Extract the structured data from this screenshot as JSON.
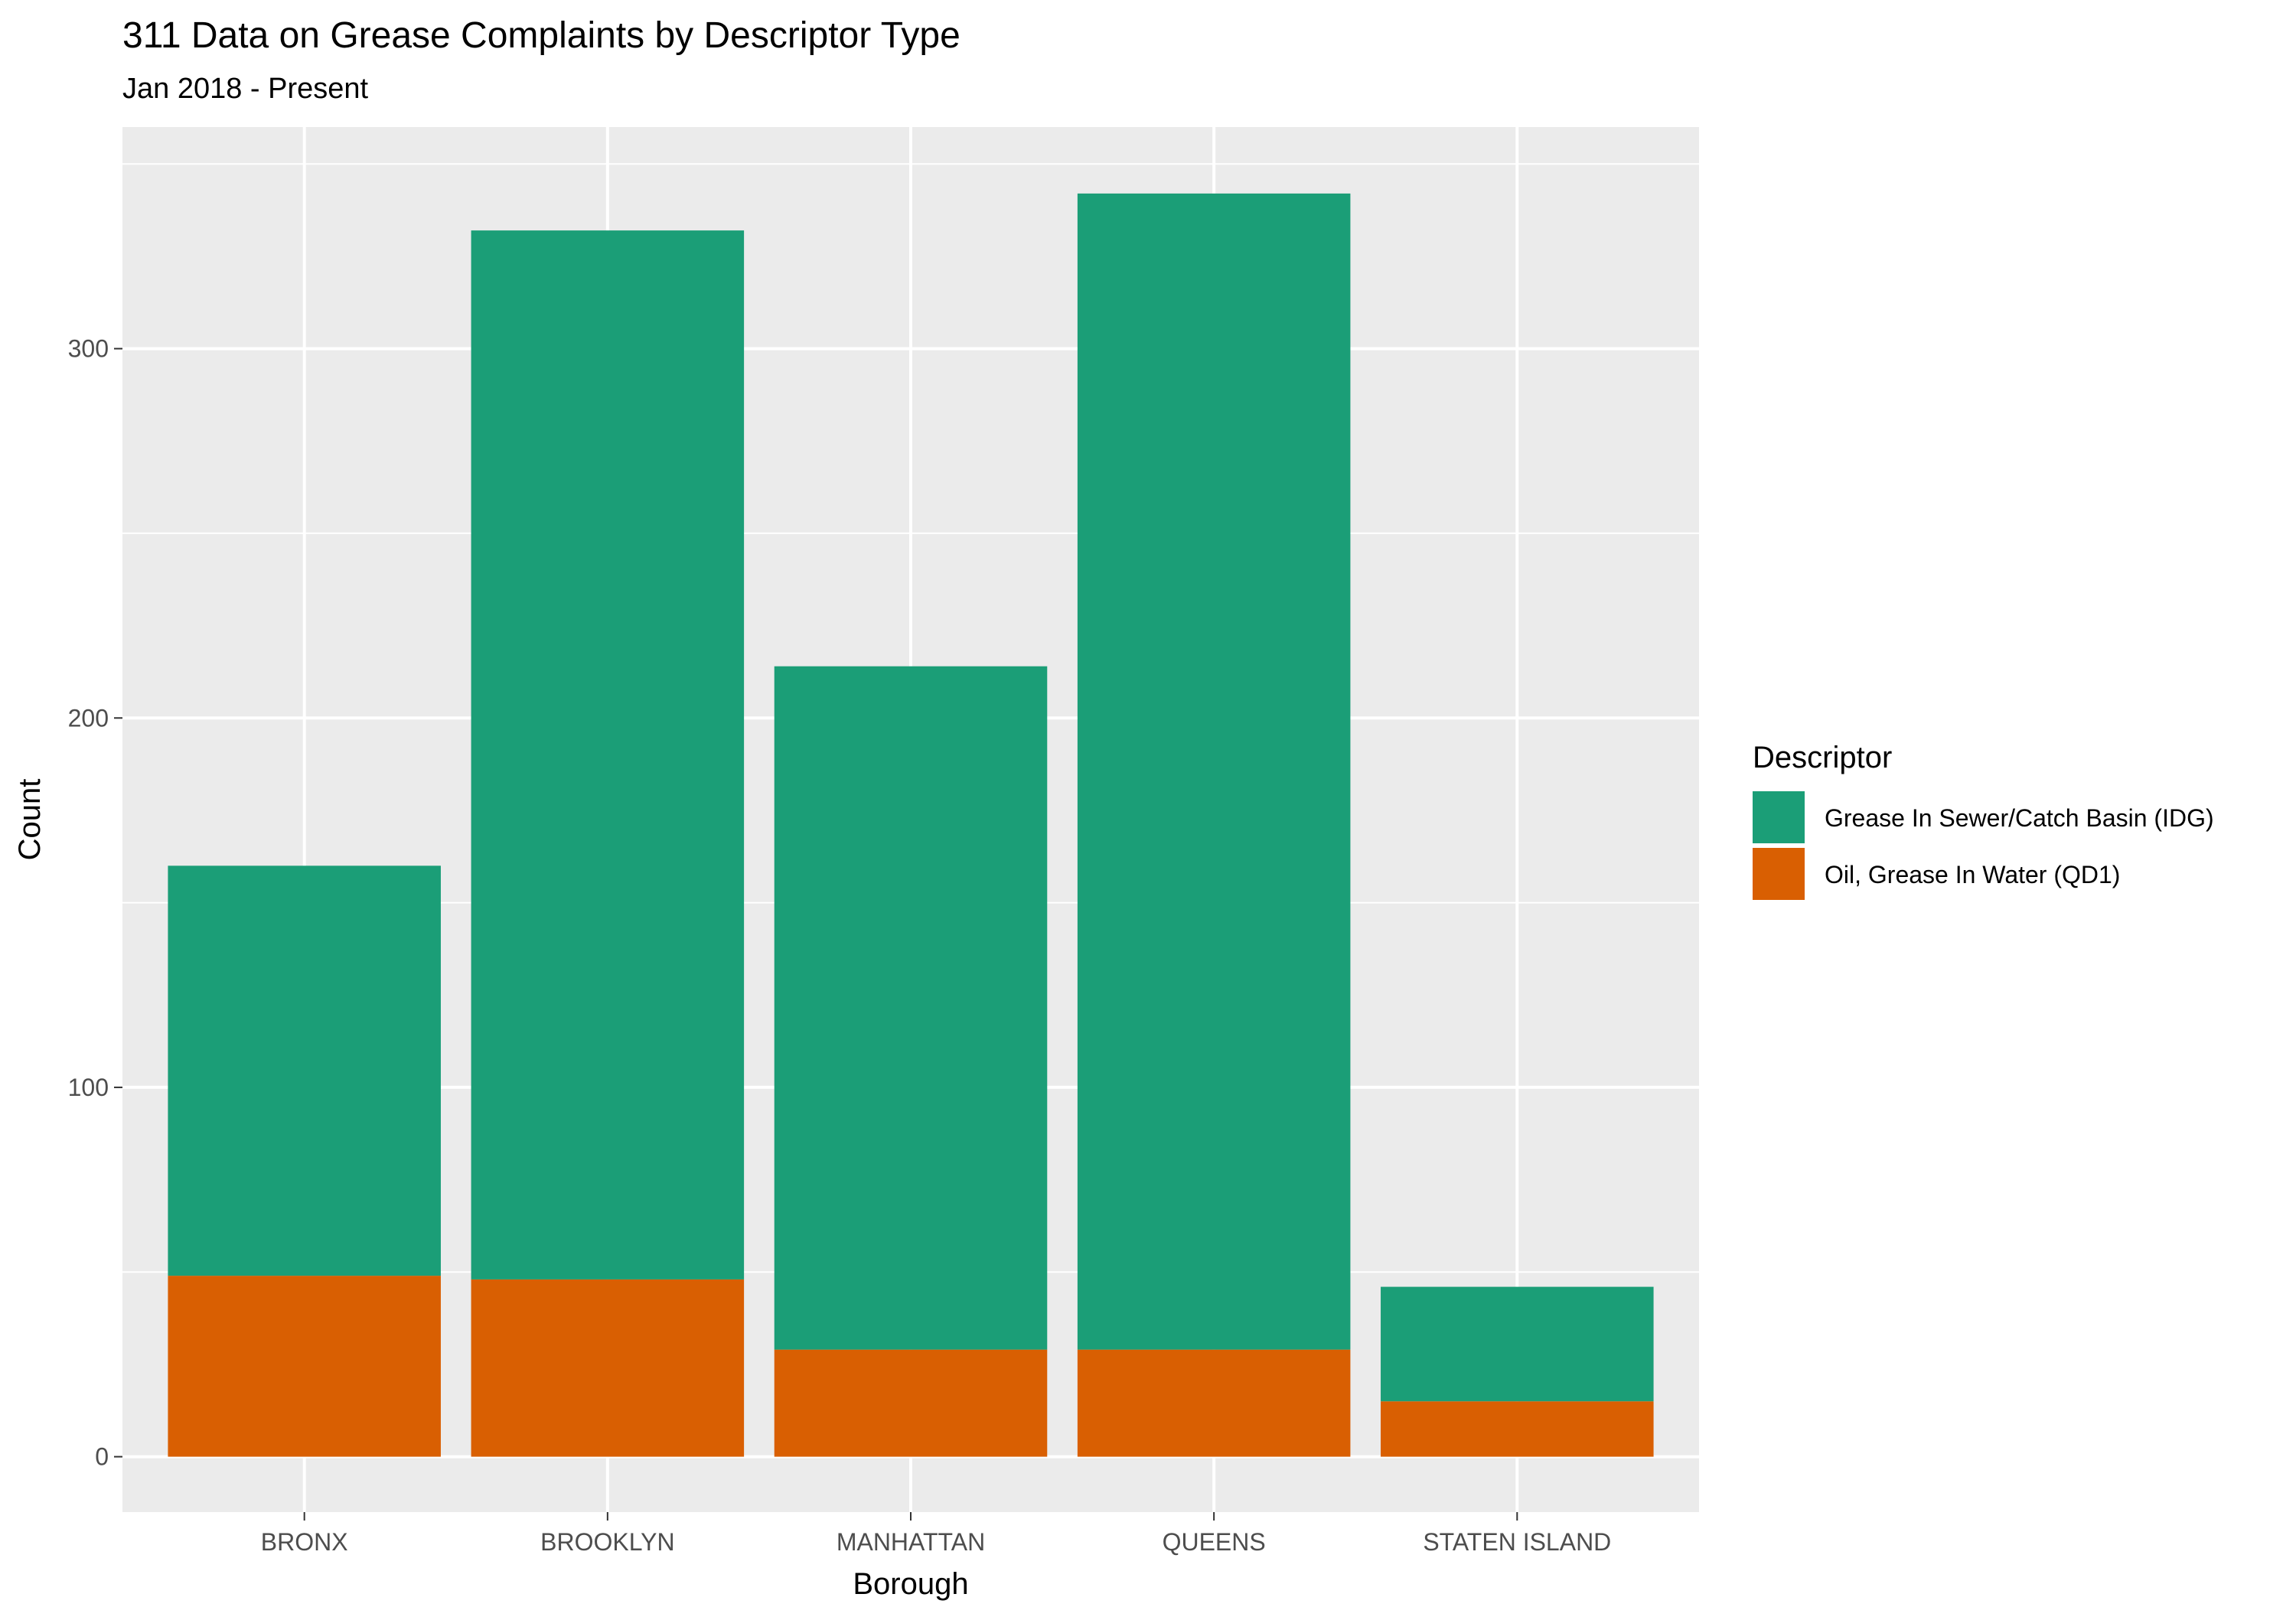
{
  "chart_data": {
    "type": "bar",
    "stacked": true,
    "title": "311 Data on Grease Complaints by Descriptor Type",
    "subtitle": "Jan 2018 - Present",
    "xlabel": "Borough",
    "ylabel": "Count",
    "categories": [
      "BRONX",
      "BROOKLYN",
      "MANHATTAN",
      "QUEENS",
      "STATEN ISLAND"
    ],
    "ylim": [
      -15,
      360
    ],
    "yticks": [
      0,
      100,
      200,
      300
    ],
    "grid": true,
    "legend_position": "right",
    "legend_title": "Descriptor",
    "series": [
      {
        "name": "Oil, Grease In Water (QD1)",
        "color": "#D95F02",
        "values": [
          49,
          48,
          29,
          29,
          15
        ]
      },
      {
        "name": "Grease In Sewer/Catch Basin (IDG)",
        "color": "#1B9E77",
        "values": [
          111,
          284,
          185,
          313,
          31
        ]
      }
    ],
    "legend_order": [
      1,
      0
    ]
  }
}
